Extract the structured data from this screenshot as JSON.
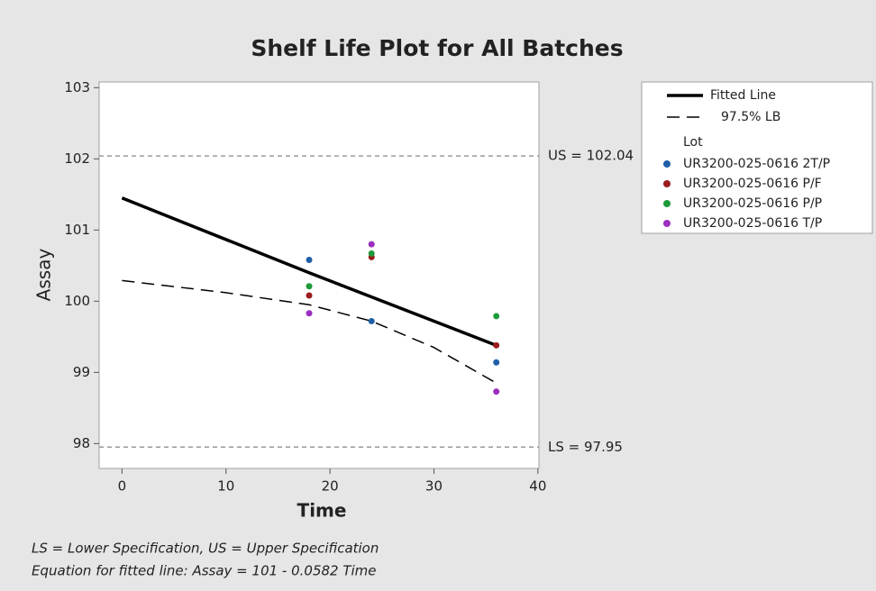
{
  "chart_data": {
    "type": "scatter",
    "title": "Shelf Life Plot for All Batches",
    "x_label": "Time",
    "y_label": "Assay",
    "xlim": [
      -2.2,
      40.1
    ],
    "ylim": [
      97.65,
      103.08
    ],
    "xticks": [
      0,
      10,
      20,
      30,
      40
    ],
    "yticks": [
      98,
      99,
      100,
      101,
      102,
      103
    ],
    "reference_lines": [
      {
        "value": 102.04,
        "label": "US = 102.04"
      },
      {
        "value": 97.95,
        "label": "LS = 97.95"
      }
    ],
    "lines": [
      {
        "name": "Fitted Line",
        "style": "solid",
        "color": "#000000",
        "x": [
          0,
          18,
          24,
          36
        ],
        "values": [
          101.45,
          100.4,
          100.06,
          99.38
        ]
      },
      {
        "name": "97.5% LB",
        "style": "dashed",
        "color": "#000000",
        "x": [
          0,
          10,
          18,
          24,
          30,
          36
        ],
        "values": [
          100.29,
          100.12,
          99.95,
          99.72,
          99.35,
          98.85
        ]
      }
    ],
    "legend_title": "Lot",
    "legend_position": "right",
    "series": [
      {
        "name": "UR3200-025-0616 2T/P",
        "color": "#1f5fa8",
        "x": [
          18,
          24,
          36
        ],
        "values": [
          100.58,
          99.72,
          99.14
        ]
      },
      {
        "name": "UR3200-025-0616 P/F",
        "color": "#9b1c1c",
        "x": [
          18,
          24,
          36
        ],
        "values": [
          100.08,
          100.62,
          99.38
        ]
      },
      {
        "name": "UR3200-025-0616 P/P",
        "color": "#1e9a3a",
        "x": [
          18,
          24,
          36
        ],
        "values": [
          100.21,
          100.67,
          99.79
        ]
      },
      {
        "name": "UR3200-025-0616 T/P",
        "color": "#9b2fc0",
        "x": [
          18,
          24,
          36
        ],
        "values": [
          99.83,
          100.8,
          98.73
        ]
      }
    ],
    "footnotes": [
      "LS = Lower Specification, US = Upper Specification",
      "Equation for fitted line: Assay = 101 - 0.0582 Time"
    ]
  }
}
